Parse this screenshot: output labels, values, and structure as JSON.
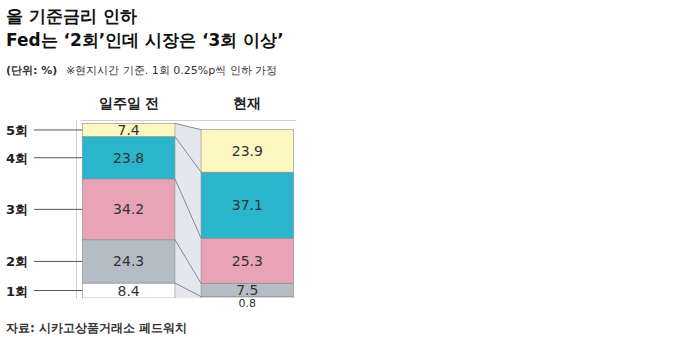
{
  "chart_data": {
    "type": "bar",
    "title": "올 기준금리 인하",
    "subtitle": "Fed는 ‘2회’인데 시장은 ‘3회 이상’",
    "annotations": [
      "(단위: %)",
      "※현지시간 기준. 1회 0.25%p씩 인하 가정"
    ],
    "source": "자료: 시카고상품거래소 페드워치",
    "categories": [
      "일주일 전",
      "현재"
    ],
    "series": [
      {
        "name": "1회",
        "color": "#ffffff",
        "values": [
          8.4,
          0.8
        ]
      },
      {
        "name": "2회",
        "color": "#b4bdc5",
        "values": [
          24.3,
          7.5
        ]
      },
      {
        "name": "3회",
        "color": "#e8a3b7",
        "values": [
          34.2,
          25.3
        ]
      },
      {
        "name": "4회",
        "color": "#2bb5cc",
        "values": [
          23.8,
          37.1
        ]
      },
      {
        "name": "5회",
        "color": "#fdf7c2",
        "values": [
          7.4,
          23.9
        ]
      }
    ],
    "ylim": [
      0,
      100
    ],
    "stacked": true,
    "data_labels": true,
    "legend": "left",
    "tick_labels": "x"
  }
}
